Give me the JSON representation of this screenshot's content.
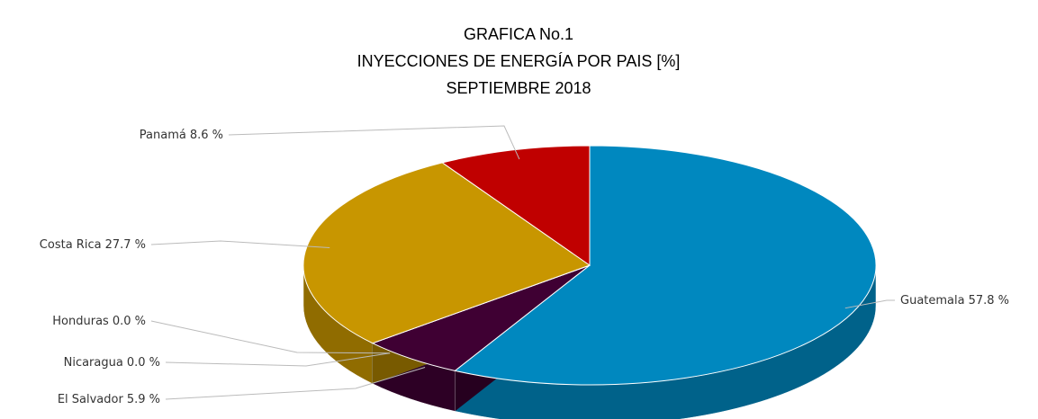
{
  "chart_data": {
    "type": "pie",
    "title": "GRAFICA No.1",
    "subtitle": [
      "INYECCIONES DE ENERGÍA POR PAIS [%]",
      "SEPTIEMBRE 2018"
    ],
    "categories": [
      "Guatemala",
      "El Salvador",
      "Nicaragua",
      "Honduras",
      "Costa Rica",
      "Panamá"
    ],
    "values": [
      57.8,
      5.9,
      0.0,
      0.0,
      27.7,
      8.6
    ],
    "value_labels": [
      "57.8 %",
      "5.9 %",
      "0.0 %",
      "0.0 %",
      "27.7 %",
      "8.6 %"
    ],
    "colors": [
      "#0088bf",
      "#3f0033",
      "#7f7f7f",
      "#5b9bd5",
      "#c89600",
      "#c00000"
    ]
  }
}
